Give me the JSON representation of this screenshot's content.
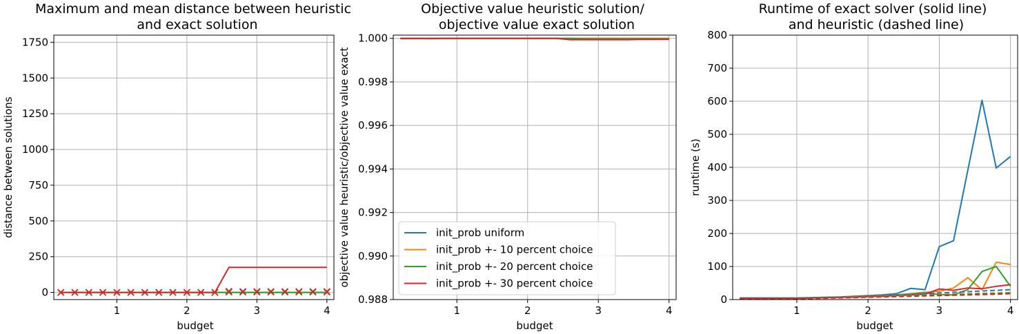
{
  "colors": {
    "blue": "#1f77b4",
    "orange": "#ff7f0e",
    "green": "#2ca02c",
    "red": "#d62728",
    "grid": "#b0b0b0"
  },
  "chart_data": [
    {
      "type": "line",
      "title_line1": "Maximum and mean distance between heuristic",
      "title_line2": "and exact solution",
      "xlabel": "budget",
      "ylabel": "distance between solutions",
      "xlim": [
        0.1,
        4.1
      ],
      "ylim": [
        -50,
        1800
      ],
      "xticks": [
        1,
        2,
        3,
        4
      ],
      "yticks": [
        0,
        250,
        500,
        750,
        1000,
        1250,
        1500,
        1750
      ],
      "grid": true,
      "x": [
        0.2,
        0.4,
        0.6,
        0.8,
        1.0,
        1.2,
        1.4,
        1.6,
        1.8,
        2.0,
        2.2,
        2.4,
        2.6,
        2.8,
        3.0,
        3.2,
        3.4,
        3.6,
        3.8,
        4.0
      ],
      "series": [
        {
          "color": "blue",
          "style": "solid",
          "values": [
            0,
            0,
            0,
            0,
            0,
            0,
            0,
            0,
            0,
            0,
            0,
            0,
            0,
            0,
            0,
            0,
            0,
            0,
            0,
            0
          ]
        },
        {
          "color": "orange",
          "style": "solid",
          "values": [
            0,
            0,
            0,
            0,
            0,
            0,
            0,
            0,
            0,
            0,
            0,
            0,
            0,
            0,
            0,
            0,
            0,
            0,
            0,
            0
          ]
        },
        {
          "color": "green",
          "style": "solid",
          "values": [
            0,
            0,
            0,
            0,
            0,
            0,
            0,
            0,
            0,
            0,
            0,
            0,
            0,
            0,
            0,
            0,
            0,
            0,
            0,
            0
          ]
        },
        {
          "color": "red",
          "style": "solid",
          "values": [
            0,
            0,
            0,
            0,
            0,
            0,
            0,
            0,
            0,
            0,
            0,
            0,
            175,
            175,
            175,
            175,
            175,
            175,
            175,
            175
          ]
        },
        {
          "color": "green",
          "style": "x-markers",
          "values": [
            0,
            0,
            0,
            0,
            0,
            0,
            0,
            0,
            0,
            0,
            0,
            0,
            2,
            2,
            2,
            2,
            2,
            2,
            2,
            2
          ]
        },
        {
          "color": "red",
          "style": "x-markers",
          "values": [
            0,
            0,
            0,
            0,
            0,
            0,
            0,
            0,
            0,
            0,
            0,
            0,
            8,
            6,
            6,
            6,
            6,
            6,
            6,
            6
          ]
        }
      ]
    },
    {
      "type": "line",
      "title_line1": "Objective value heuristic solution/",
      "title_line2": "objective value exact solution",
      "xlabel": "budget",
      "ylabel": "objective value heuristic/objective value exact",
      "xlim": [
        0.1,
        4.1
      ],
      "ylim": [
        0.988,
        1.00015
      ],
      "xticks": [
        1,
        2,
        3,
        4
      ],
      "yticks": [
        "0.988",
        "0.990",
        "0.992",
        "0.994",
        "0.996",
        "0.998",
        "1.000"
      ],
      "grid": true,
      "legend_position": "lower-left",
      "x": [
        0.2,
        0.4,
        0.6,
        0.8,
        1.0,
        1.2,
        1.4,
        1.6,
        1.8,
        2.0,
        2.2,
        2.4,
        2.6,
        2.8,
        3.0,
        3.2,
        3.4,
        3.6,
        3.8,
        4.0
      ],
      "series": [
        {
          "name": "init_prob uniform",
          "color": "blue",
          "style": "solid",
          "values": [
            1,
            1,
            1,
            1,
            1,
            1,
            1,
            1,
            1,
            1,
            1,
            1,
            1,
            1,
            1,
            1,
            1,
            1,
            1,
            1
          ]
        },
        {
          "name": "init_prob +- 10 percent choice",
          "color": "orange",
          "style": "solid",
          "values": [
            1,
            1,
            1,
            1,
            1,
            1,
            1,
            1,
            1,
            1,
            1,
            1,
            1,
            1,
            1,
            1,
            1,
            1,
            1,
            1
          ]
        },
        {
          "name": "init_prob +- 20 percent choice",
          "color": "green",
          "style": "solid",
          "values": [
            1,
            1,
            1,
            1,
            1,
            1,
            1,
            1,
            1,
            1,
            1,
            1,
            1,
            0.99998,
            0.99998,
            0.99998,
            0.99998,
            0.99998,
            0.99998,
            0.99998
          ]
        },
        {
          "name": "init_prob +- 30 percent choice",
          "color": "red",
          "style": "solid",
          "values": [
            0.99999,
            1,
            0.99999,
            1,
            1,
            1,
            1,
            1,
            1,
            1,
            1,
            1,
            0.99994,
            0.99994,
            0.99994,
            0.99994,
            0.99994,
            0.99995,
            0.99995,
            0.99995
          ]
        }
      ]
    },
    {
      "type": "line",
      "title_line1": "Runtime of exact solver (solid line)",
      "title_line2": "and heuristic (dashed line)",
      "xlabel": "budget",
      "ylabel": "runtime (s)",
      "xlim": [
        0.1,
        4.1
      ],
      "ylim": [
        0,
        800
      ],
      "xticks": [
        1,
        2,
        3,
        4
      ],
      "yticks": [
        0,
        100,
        200,
        300,
        400,
        500,
        600,
        700,
        800
      ],
      "grid": true,
      "x": [
        0.2,
        0.4,
        0.6,
        0.8,
        1.0,
        1.2,
        1.4,
        1.6,
        1.8,
        2.0,
        2.2,
        2.4,
        2.6,
        2.8,
        3.0,
        3.2,
        3.4,
        3.6,
        3.8,
        4.0
      ],
      "series": [
        {
          "color": "blue",
          "style": "solid",
          "values": [
            5,
            5,
            5,
            5,
            5,
            6,
            7,
            8,
            10,
            12,
            14,
            18,
            34,
            30,
            160,
            178,
            390,
            603,
            398,
            433
          ]
        },
        {
          "color": "orange",
          "style": "solid",
          "values": [
            4,
            4,
            4,
            4,
            4,
            5,
            6,
            7,
            8,
            10,
            12,
            14,
            18,
            22,
            25,
            35,
            66,
            30,
            113,
            106
          ]
        },
        {
          "color": "green",
          "style": "solid",
          "values": [
            4,
            4,
            4,
            4,
            4,
            5,
            6,
            7,
            8,
            10,
            12,
            14,
            16,
            20,
            15,
            14,
            30,
            85,
            100,
            40
          ]
        },
        {
          "color": "red",
          "style": "solid",
          "values": [
            4,
            4,
            4,
            4,
            4,
            5,
            6,
            7,
            8,
            9,
            10,
            12,
            14,
            16,
            32,
            28,
            35,
            33,
            40,
            45
          ]
        },
        {
          "color": "blue",
          "style": "dashed",
          "values": [
            3,
            3,
            3,
            3,
            4,
            5,
            6,
            7,
            9,
            11,
            12,
            14,
            16,
            18,
            20,
            22,
            24,
            26,
            28,
            30
          ]
        },
        {
          "color": "orange",
          "style": "dashed",
          "values": [
            2,
            2,
            2,
            3,
            3,
            4,
            5,
            6,
            8,
            9,
            10,
            12,
            13,
            14,
            15,
            17,
            18,
            19,
            20,
            21
          ]
        },
        {
          "color": "green",
          "style": "dashed",
          "values": [
            2,
            2,
            2,
            3,
            3,
            4,
            5,
            6,
            7,
            8,
            9,
            11,
            12,
            13,
            14,
            15,
            16,
            18,
            19,
            20
          ]
        },
        {
          "color": "red",
          "style": "dashed",
          "values": [
            2,
            2,
            2,
            2,
            3,
            3,
            4,
            5,
            6,
            7,
            8,
            9,
            10,
            11,
            12,
            13,
            14,
            15,
            16,
            18
          ]
        }
      ]
    }
  ]
}
